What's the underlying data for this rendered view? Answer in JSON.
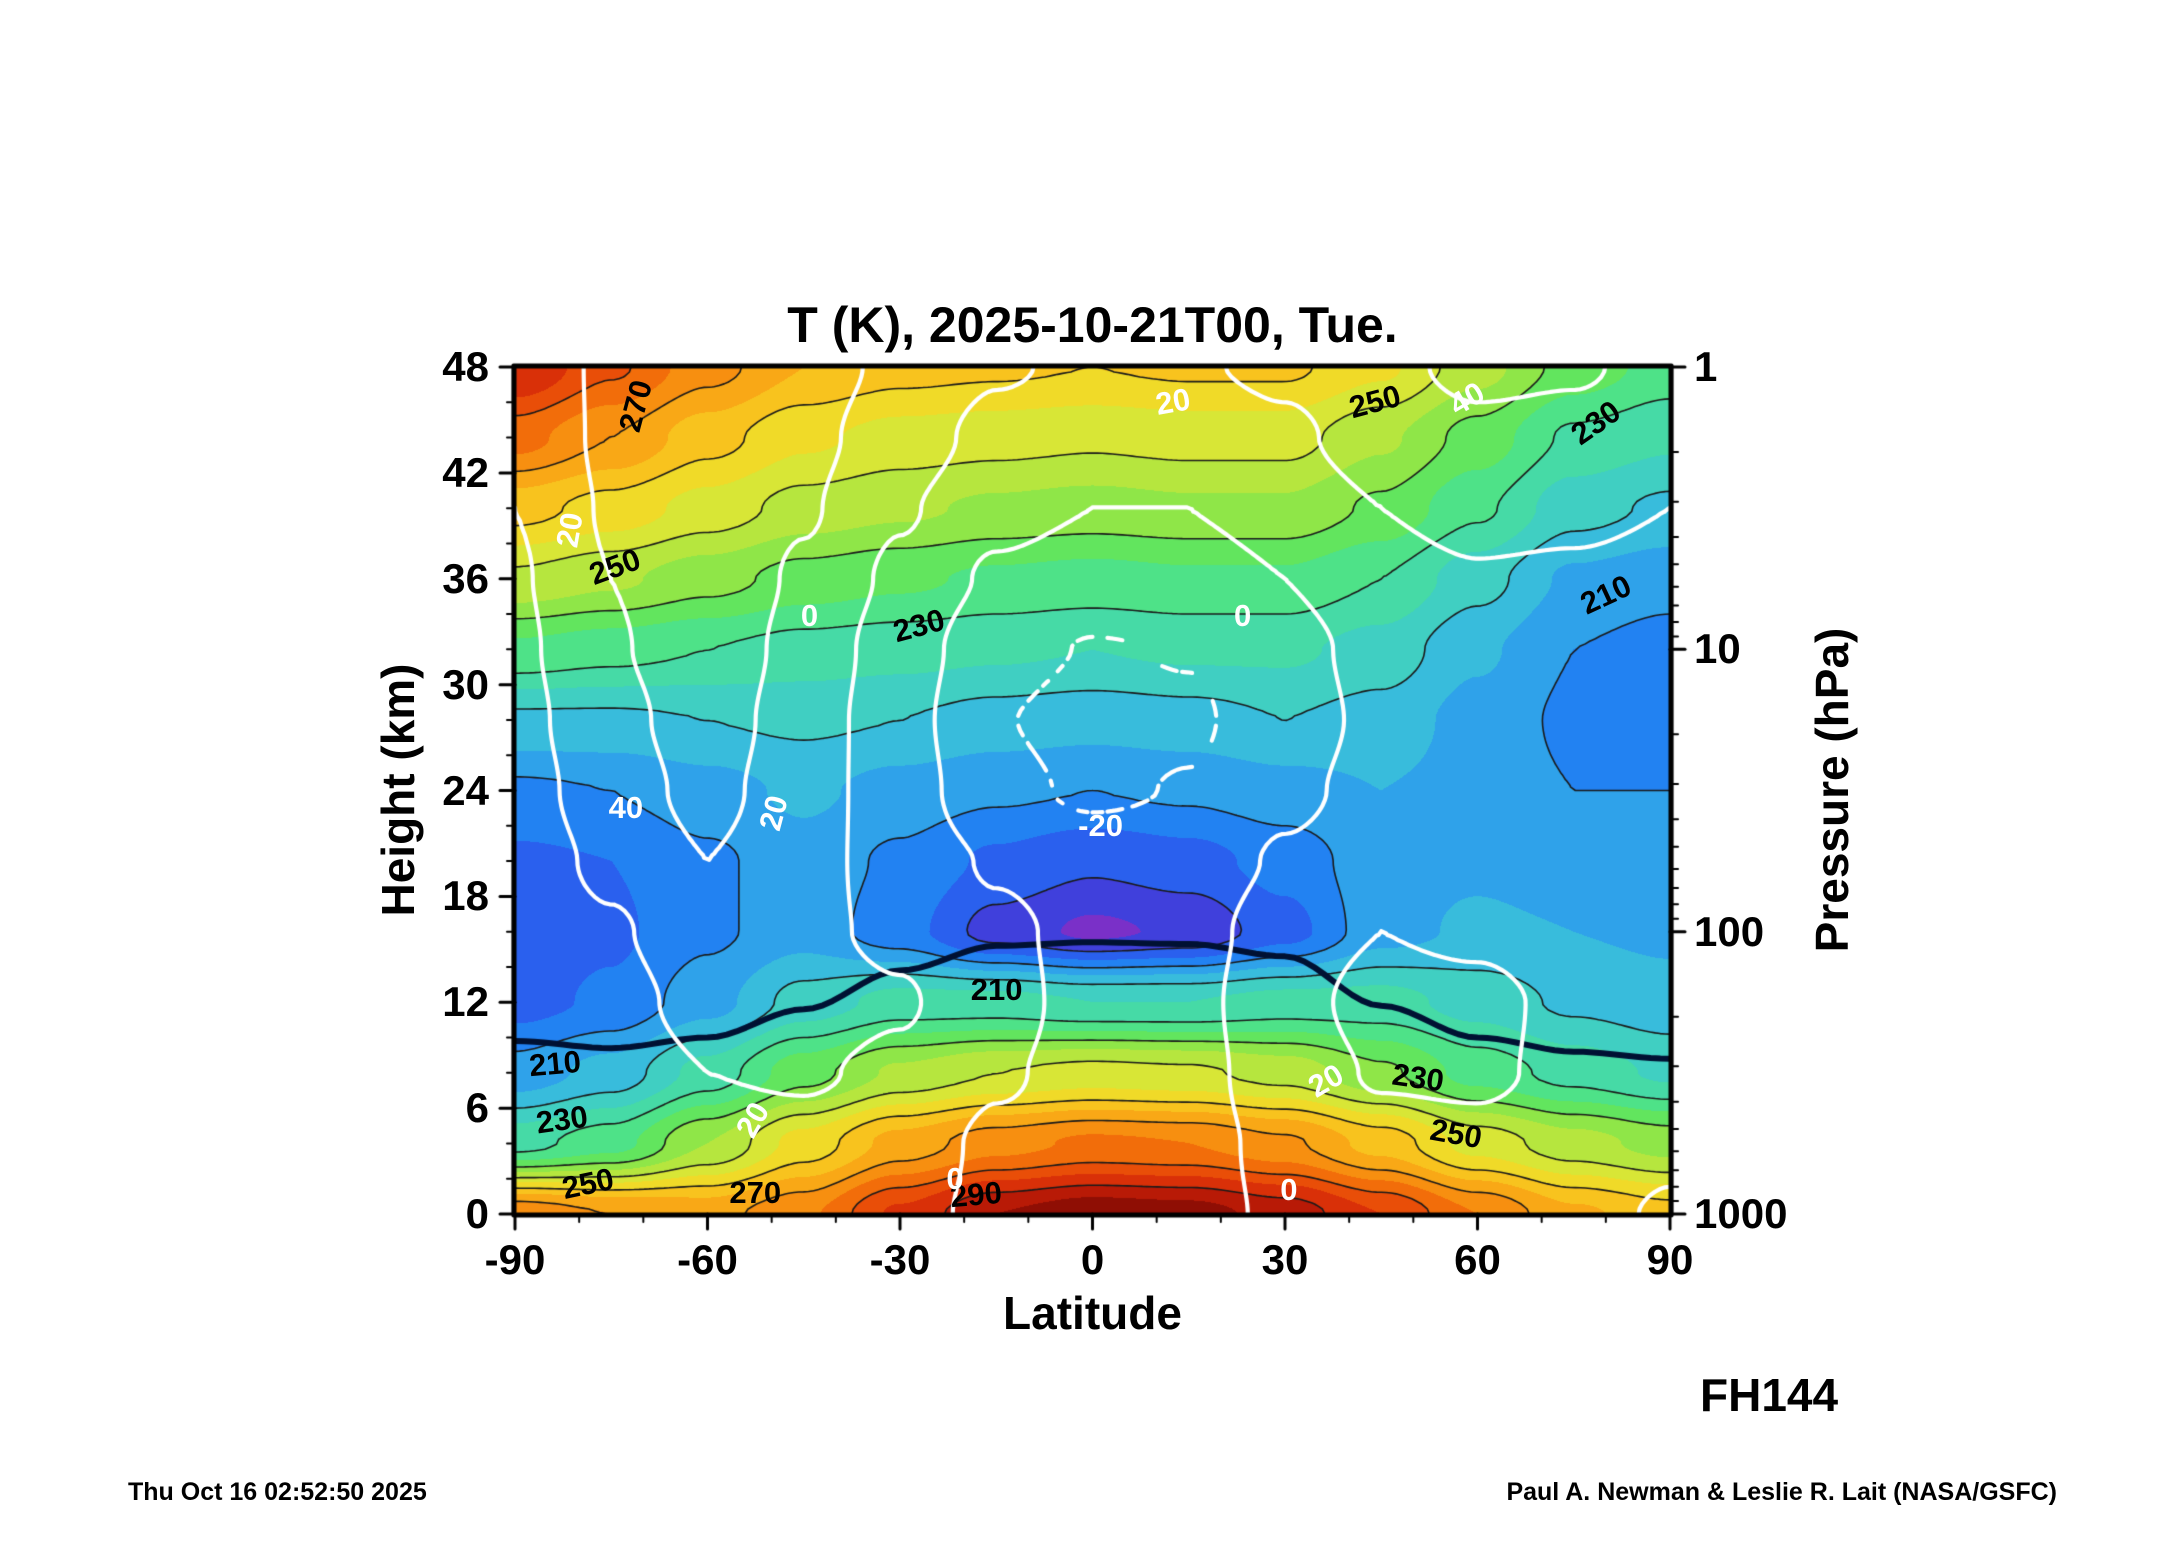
{
  "title": "T (K), 2025-10-21T00, Tue.",
  "forecast_hour": "FH144",
  "footer_left": "Thu Oct 16 02:52:50 2025",
  "footer_right": "Paul A. Newman & Leslie R. Lait (NASA/GSFC)",
  "chart_data": {
    "type": "heatmap",
    "title": "T (K), 2025-10-21T00, Tue.",
    "xlabel": "Latitude",
    "ylabel_left": "Height (km)",
    "ylabel_right": "Pressure (hPa)",
    "x_range": [
      -90,
      90
    ],
    "x_ticks": [
      -90,
      -60,
      -30,
      0,
      30,
      60,
      90
    ],
    "y_range_km": [
      0,
      48
    ],
    "y_ticks_km": [
      0,
      6,
      12,
      18,
      24,
      30,
      36,
      42,
      48
    ],
    "pressure_ticks_hpa": [
      1,
      10,
      100,
      1000
    ],
    "pressure_scale": "log",
    "grid_on": false,
    "lat_grid": [
      -90,
      -75,
      -60,
      -45,
      -30,
      -15,
      0,
      15,
      30,
      45,
      60,
      75,
      90
    ],
    "height_grid_km": [
      0,
      4,
      8,
      12,
      16,
      20,
      24,
      28,
      32,
      36,
      40,
      44,
      48
    ],
    "temperature_K": [
      [
        274,
        270,
        268,
        274,
        286,
        295,
        298,
        297,
        293,
        285,
        275,
        266,
        262
      ],
      [
        228,
        233,
        245,
        257,
        267,
        273,
        276,
        275,
        271,
        263,
        253,
        247,
        243
      ],
      [
        212,
        217,
        227,
        238,
        246,
        250,
        252,
        251,
        248,
        241,
        233,
        228,
        224
      ],
      [
        203,
        206,
        213,
        222,
        227,
        227,
        225,
        225,
        227,
        227,
        223,
        219,
        217
      ],
      [
        202,
        204,
        209,
        213,
        207,
        198,
        194,
        196,
        203,
        213,
        216,
        215,
        214
      ],
      [
        204,
        205,
        209,
        213,
        209,
        204,
        201,
        203,
        207,
        213,
        214,
        212,
        212
      ],
      [
        209,
        210,
        213,
        216,
        213,
        211,
        210,
        211,
        213,
        215,
        213,
        210,
        210
      ],
      [
        219,
        219,
        220,
        221,
        220,
        218,
        217,
        218,
        220,
        218,
        213,
        209,
        208
      ],
      [
        234,
        232,
        230,
        228,
        227,
        226,
        225,
        226,
        226,
        223,
        216,
        210,
        208
      ],
      [
        249,
        246,
        242,
        238,
        236,
        234,
        233,
        234,
        234,
        230,
        222,
        214,
        212
      ],
      [
        262,
        258,
        253,
        248,
        246,
        244,
        243,
        244,
        244,
        239,
        231,
        222,
        219
      ],
      [
        277,
        270,
        262,
        256,
        253,
        252,
        251,
        252,
        252,
        246,
        238,
        229,
        226
      ],
      [
        290,
        281,
        272,
        265,
        262,
        261,
        260,
        261,
        261,
        256,
        247,
        238,
        233
      ]
    ],
    "zonal_wind_ms": [
      [
        0,
        2,
        5,
        8,
        4,
        -3,
        -5,
        -4,
        2,
        6,
        8,
        3,
        -1
      ],
      [
        2,
        6,
        12,
        14,
        8,
        -3,
        -6,
        -5,
        4,
        12,
        14,
        8,
        2
      ],
      [
        4,
        10,
        20,
        22,
        16,
        2,
        -6,
        -5,
        8,
        22,
        24,
        14,
        6
      ],
      [
        6,
        14,
        26,
        28,
        22,
        6,
        -6,
        -5,
        12,
        28,
        26,
        14,
        6
      ],
      [
        8,
        18,
        32,
        24,
        16,
        4,
        -6,
        -6,
        8,
        20,
        16,
        8,
        2
      ],
      [
        10,
        24,
        40,
        26,
        12,
        -2,
        -10,
        -10,
        2,
        10,
        8,
        4,
        0
      ],
      [
        12,
        30,
        46,
        28,
        10,
        -15,
        -23,
        -19,
        -4,
        6,
        6,
        4,
        2
      ],
      [
        14,
        34,
        50,
        30,
        8,
        -19,
        -27,
        -23,
        -8,
        4,
        6,
        6,
        4
      ],
      [
        16,
        38,
        54,
        33,
        10,
        -13,
        -21,
        -19,
        -6,
        6,
        10,
        10,
        8
      ],
      [
        18,
        40,
        56,
        37,
        16,
        -3,
        -9,
        -9,
        0,
        12,
        18,
        16,
        12
      ],
      [
        20,
        42,
        58,
        42,
        22,
        6,
        0,
        0,
        8,
        20,
        28,
        26,
        20
      ],
      [
        22,
        44,
        58,
        45,
        30,
        14,
        8,
        8,
        16,
        30,
        36,
        34,
        28
      ],
      [
        24,
        44,
        56,
        48,
        36,
        22,
        16,
        18,
        24,
        36,
        44,
        42,
        34
      ]
    ],
    "temp_fill_band_edges_K": [
      195,
      200,
      205,
      210,
      215,
      220,
      225,
      230,
      235,
      240,
      245,
      250,
      255,
      260,
      265,
      270,
      275,
      280,
      285,
      290,
      295
    ],
    "temp_fill_colors": [
      "#7a30c8",
      "#4040dc",
      "#2a60ee",
      "#2282f2",
      "#2fa2ea",
      "#38bcdc",
      "#40cfc2",
      "#46daa6",
      "#4ee288",
      "#62e55e",
      "#8fe648",
      "#b6e63e",
      "#d8e636",
      "#f0da28",
      "#f8c31e",
      "#f9a816",
      "#f78f10",
      "#f26d0a",
      "#e94e08",
      "#d93008",
      "#b81a06",
      "#8f0e04"
    ],
    "temp_contour_levels_K": [
      200,
      210,
      220,
      230,
      240,
      250,
      260,
      270,
      280,
      290
    ],
    "wind_contour_levels_ms": [
      -20,
      0,
      20,
      40
    ],
    "tropopause_height_km": [
      9.8,
      9.4,
      10.0,
      11.6,
      13.8,
      15.2,
      15.4,
      15.3,
      14.6,
      11.8,
      10.0,
      9.2,
      8.8
    ],
    "tropopause_color": "#001133",
    "temp_contour_color": "#1a1a1a",
    "wind_contour_color": "#ffffff",
    "contour_labels": {
      "temperature": [
        {
          "text": "270",
          "x": 0.105,
          "y": 0.046,
          "rot": -75
        },
        {
          "text": "250",
          "x": 0.087,
          "y": 0.236,
          "rot": -20
        },
        {
          "text": "230",
          "x": 0.35,
          "y": 0.306,
          "rot": -15
        },
        {
          "text": "210",
          "x": 0.945,
          "y": 0.269,
          "rot": -25
        },
        {
          "text": "230",
          "x": 0.936,
          "y": 0.066,
          "rot": -35
        },
        {
          "text": "250",
          "x": 0.745,
          "y": 0.041,
          "rot": -15
        },
        {
          "text": "210",
          "x": 0.417,
          "y": 0.736,
          "rot": 0
        },
        {
          "text": "210",
          "x": 0.035,
          "y": 0.823,
          "rot": -5
        },
        {
          "text": "230",
          "x": 0.041,
          "y": 0.889,
          "rot": -8
        },
        {
          "text": "250",
          "x": 0.063,
          "y": 0.965,
          "rot": -12
        },
        {
          "text": "270",
          "x": 0.208,
          "y": 0.975,
          "rot": 0
        },
        {
          "text": "290",
          "x": 0.399,
          "y": 0.978,
          "rot": -5
        },
        {
          "text": "230",
          "x": 0.782,
          "y": 0.84,
          "rot": 8
        },
        {
          "text": "250",
          "x": 0.815,
          "y": 0.905,
          "rot": 10
        }
      ],
      "wind": [
        {
          "text": "20",
          "x": 0.048,
          "y": 0.192,
          "rot": -80
        },
        {
          "text": "0",
          "x": 0.255,
          "y": 0.294,
          "rot": 0
        },
        {
          "text": "0",
          "x": 0.63,
          "y": 0.294,
          "rot": 0
        },
        {
          "text": "20",
          "x": 0.57,
          "y": 0.041,
          "rot": -10
        },
        {
          "text": "40",
          "x": 0.824,
          "y": 0.038,
          "rot": -30
        },
        {
          "text": "-20",
          "x": 0.507,
          "y": 0.542,
          "rot": 0
        },
        {
          "text": "40",
          "x": 0.096,
          "y": 0.521,
          "rot": 0
        },
        {
          "text": "20",
          "x": 0.224,
          "y": 0.527,
          "rot": -75
        },
        {
          "text": "20",
          "x": 0.206,
          "y": 0.889,
          "rot": -60
        },
        {
          "text": "0",
          "x": 0.381,
          "y": 0.959,
          "rot": 0
        },
        {
          "text": "0",
          "x": 0.67,
          "y": 0.972,
          "rot": 0
        },
        {
          "text": "20",
          "x": 0.702,
          "y": 0.843,
          "rot": -30
        }
      ]
    }
  }
}
